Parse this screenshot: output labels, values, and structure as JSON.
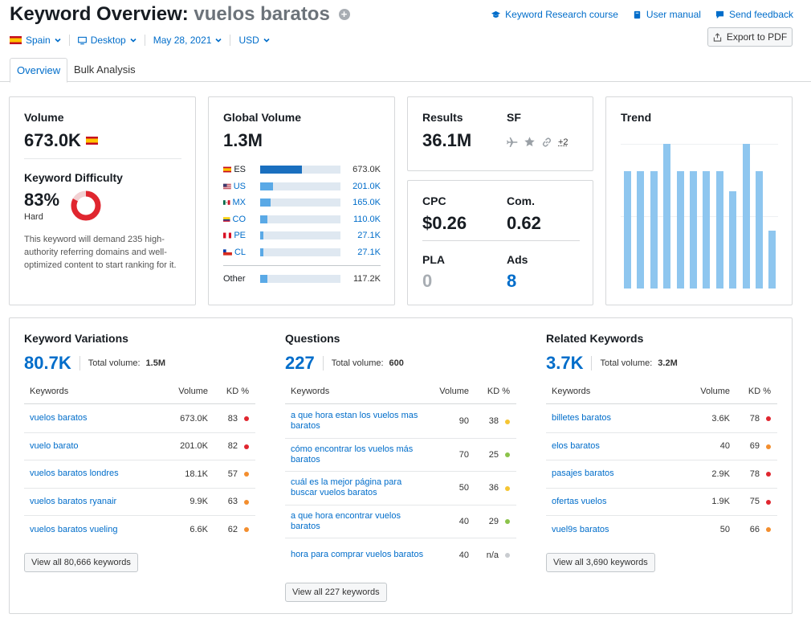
{
  "header": {
    "title_prefix": "Keyword Overview:",
    "keyword": "vuelos baratos",
    "links": [
      {
        "label": "Keyword Research course",
        "icon": "graduation-cap-icon"
      },
      {
        "label": "User manual",
        "icon": "book-icon"
      },
      {
        "label": "Send feedback",
        "icon": "chat-bubble-icon"
      }
    ],
    "export_label": "Export to PDF"
  },
  "filters": {
    "country": "Spain",
    "device": "Desktop",
    "date": "May 28, 2021",
    "currency": "USD"
  },
  "tabs": [
    {
      "label": "Overview",
      "active": true
    },
    {
      "label": "Bulk Analysis",
      "active": false
    }
  ],
  "volume": {
    "title": "Volume",
    "value": "673.0K",
    "kd_title": "Keyword Difficulty",
    "kd_value": "83%",
    "kd_label": "Hard",
    "kd_percent": 83,
    "kd_description": "This keyword will demand 235 high-authority referring domains and well-optimized content to start ranking for it."
  },
  "global_volume": {
    "title": "Global Volume",
    "value": "1.3M",
    "countries": [
      {
        "code": "ES",
        "value": "673.0K",
        "share": 0.52,
        "link": false
      },
      {
        "code": "US",
        "value": "201.0K",
        "share": 0.16,
        "link": true
      },
      {
        "code": "MX",
        "value": "165.0K",
        "share": 0.13,
        "link": true
      },
      {
        "code": "CO",
        "value": "110.0K",
        "share": 0.09,
        "link": true
      },
      {
        "code": "PE",
        "value": "27.1K",
        "share": 0.03,
        "link": true
      },
      {
        "code": "CL",
        "value": "27.1K",
        "share": 0.03,
        "link": true
      }
    ],
    "other": {
      "label": "Other",
      "value": "117.2K",
      "share": 0.09
    }
  },
  "results": {
    "results_label": "Results",
    "results_value": "36.1M",
    "sf_label": "SF",
    "sf_more": "+2",
    "sf_icons": [
      "plane-icon",
      "star-icon",
      "link-icon"
    ]
  },
  "cpc": {
    "cpc_label": "CPC",
    "cpc_value": "$0.26",
    "com_label": "Com.",
    "com_value": "0.62",
    "pla_label": "PLA",
    "pla_value": "0",
    "ads_label": "Ads",
    "ads_value": "8"
  },
  "trend": {
    "title": "Trend",
    "values": [
      0.81,
      0.81,
      0.81,
      1.0,
      0.81,
      0.81,
      0.81,
      0.81,
      0.67,
      1.0,
      0.81,
      0.4
    ]
  },
  "keyword_variations": {
    "title": "Keyword Variations",
    "count": "80.7K",
    "total_label": "Total volume:",
    "total_value": "1.5M",
    "headers": {
      "keyword": "Keywords",
      "volume": "Volume",
      "kd": "KD %"
    },
    "rows": [
      {
        "keyword": "vuelos baratos",
        "volume": "673.0K",
        "kd": "83",
        "color": "#e0262f"
      },
      {
        "keyword": "vuelo barato",
        "volume": "201.0K",
        "kd": "82",
        "color": "#e0262f"
      },
      {
        "keyword": "vuelos baratos londres",
        "volume": "18.1K",
        "kd": "57",
        "color": "#f38e2e"
      },
      {
        "keyword": "vuelos baratos ryanair",
        "volume": "9.9K",
        "kd": "63",
        "color": "#f38e2e"
      },
      {
        "keyword": "vuelos baratos vueling",
        "volume": "6.6K",
        "kd": "62",
        "color": "#f38e2e"
      }
    ],
    "view_all": "View all 80,666 keywords"
  },
  "questions": {
    "title": "Questions",
    "count": "227",
    "total_label": "Total volume:",
    "total_value": "600",
    "headers": {
      "keyword": "Keywords",
      "volume": "Volume",
      "kd": "KD %"
    },
    "rows": [
      {
        "keyword": "a que hora estan los vuelos mas baratos",
        "volume": "90",
        "kd": "38",
        "color": "#f5c533"
      },
      {
        "keyword": "cómo encontrar los vuelos más baratos",
        "volume": "70",
        "kd": "25",
        "color": "#8bc34a"
      },
      {
        "keyword": "cuál es la mejor página para buscar vuelos baratos",
        "volume": "50",
        "kd": "36",
        "color": "#f5c533"
      },
      {
        "keyword": "a que hora encontrar vuelos baratos",
        "volume": "40",
        "kd": "29",
        "color": "#8bc34a"
      },
      {
        "keyword": "hora para comprar vuelos baratos",
        "volume": "40",
        "kd": "n/a",
        "color": "#c9ccd0"
      }
    ],
    "view_all": "View all 227 keywords"
  },
  "related_keywords": {
    "title": "Related Keywords",
    "count": "3.7K",
    "total_label": "Total volume:",
    "total_value": "3.2M",
    "headers": {
      "keyword": "Keywords",
      "volume": "Volume",
      "kd": "KD %"
    },
    "rows": [
      {
        "keyword": "billetes baratos",
        "volume": "3.6K",
        "kd": "78",
        "color": "#e0262f"
      },
      {
        "keyword": "elos baratos",
        "volume": "40",
        "kd": "69",
        "color": "#f38e2e"
      },
      {
        "keyword": "pasajes baratos",
        "volume": "2.9K",
        "kd": "78",
        "color": "#e0262f"
      },
      {
        "keyword": "ofertas vuelos",
        "volume": "1.9K",
        "kd": "75",
        "color": "#e0262f"
      },
      {
        "keyword": "vuel9s baratos",
        "volume": "50",
        "kd": "66",
        "color": "#f38e2e"
      }
    ],
    "view_all": "View all 3,690 keywords"
  }
}
